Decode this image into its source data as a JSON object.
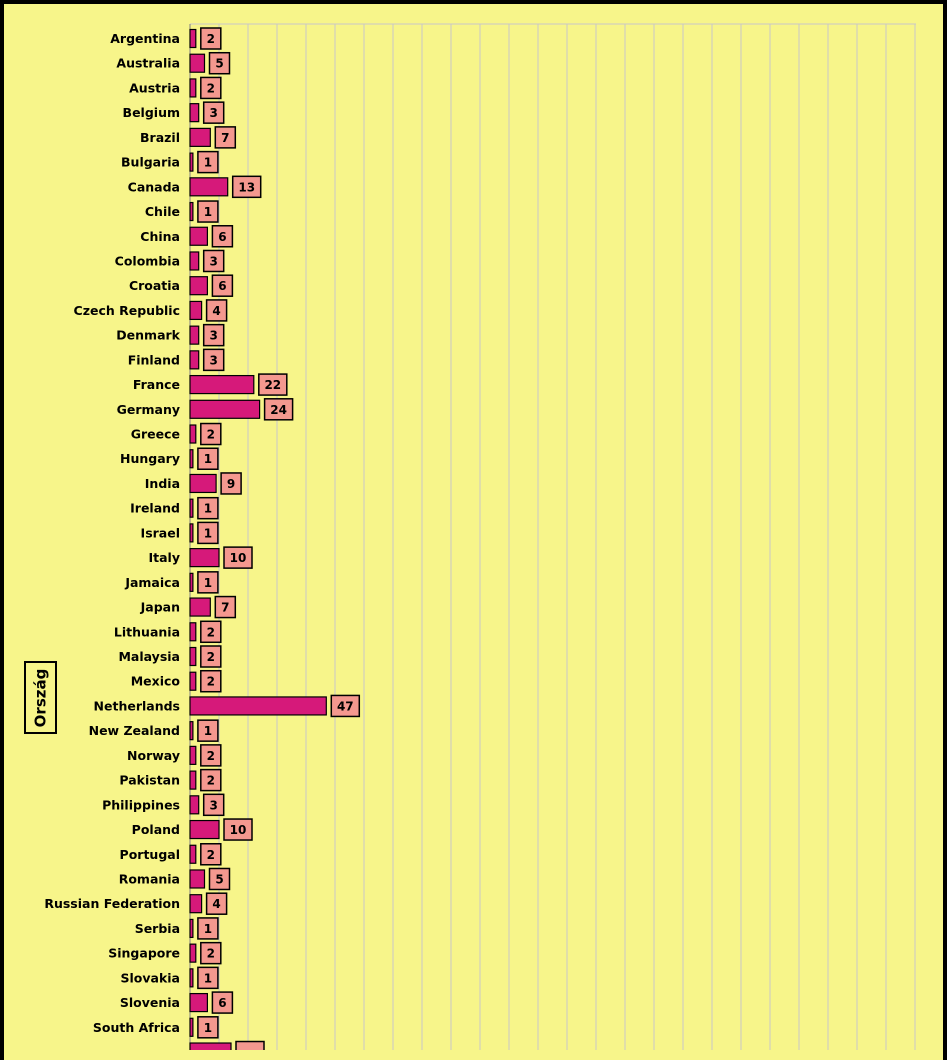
{
  "chart_data": {
    "type": "bar",
    "orientation": "horizontal",
    "title": "",
    "xlabel": "",
    "ylabel": "Ország",
    "grid": true,
    "legend": "none",
    "categories": [
      "Argentina",
      "Australia",
      "Austria",
      "Belgium",
      "Brazil",
      "Bulgaria",
      "Canada",
      "Chile",
      "China",
      "Colombia",
      "Croatia",
      "Czech Republic",
      "Denmark",
      "Finland",
      "France",
      "Germany",
      "Greece",
      "Hungary",
      "India",
      "Ireland",
      "Israel",
      "Italy",
      "Jamaica",
      "Japan",
      "Lithuania",
      "Malaysia",
      "Mexico",
      "Netherlands",
      "New Zealand",
      "Norway",
      "Pakistan",
      "Philippines",
      "Poland",
      "Portugal",
      "Romania",
      "Russian Federation",
      "Serbia",
      "Singapore",
      "Slovakia",
      "Slovenia",
      "South Africa"
    ],
    "values": [
      2,
      5,
      2,
      3,
      7,
      1,
      13,
      1,
      6,
      3,
      6,
      4,
      3,
      3,
      22,
      24,
      2,
      1,
      9,
      1,
      1,
      10,
      1,
      7,
      2,
      2,
      2,
      47,
      1,
      2,
      2,
      3,
      10,
      2,
      5,
      4,
      1,
      2,
      1,
      6,
      1
    ],
    "xlim": [
      0,
      50
    ],
    "colors": {
      "bar_fill": "#d6197a",
      "label_fill": "#f4988f",
      "plot_background": "#f7f58a",
      "grid": "#c8c8c8",
      "border": "#000000"
    }
  }
}
